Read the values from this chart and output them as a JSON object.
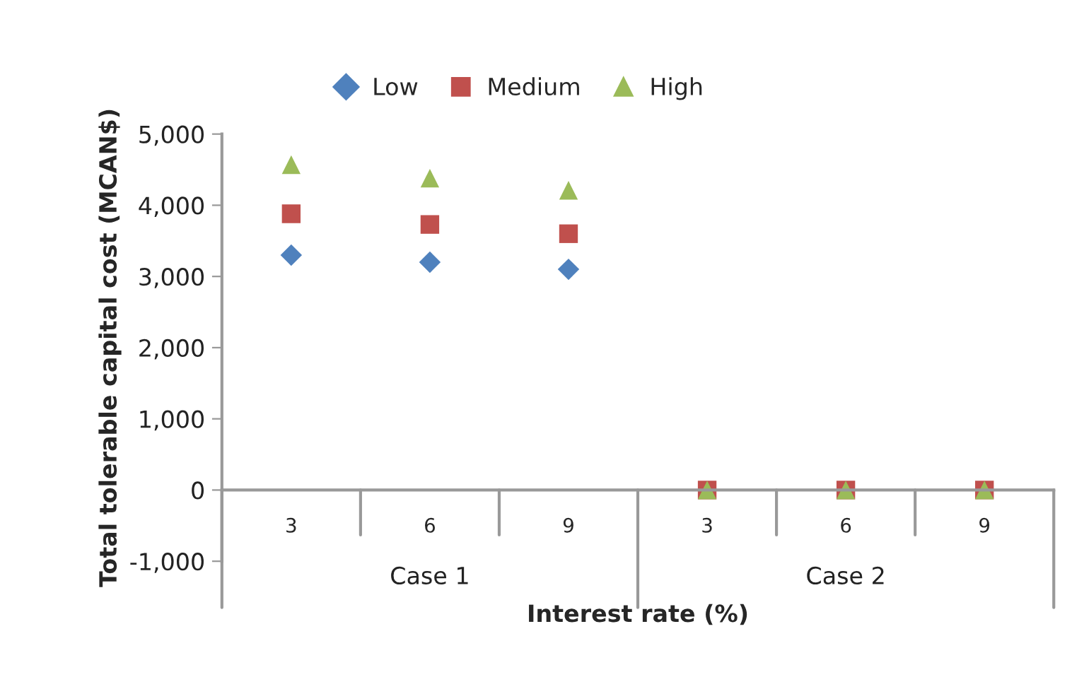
{
  "chart_data": {
    "type": "scatter",
    "xlabel": "Interest rate (%)",
    "ylabel": "Total tolerable capital cost (MCAN$)",
    "categories": [
      "3",
      "6",
      "9",
      "3",
      "6",
      "9"
    ],
    "series": [
      {
        "name": "Low",
        "color": "#4f81bd",
        "marker": "diamond",
        "values": [
          3300,
          3200,
          3100,
          null,
          null,
          null
        ]
      },
      {
        "name": "Medium",
        "color": "#c0504d",
        "marker": "square",
        "values": [
          3880,
          3730,
          3600,
          0,
          0,
          0
        ]
      },
      {
        "name": "High",
        "color": "#9bbb59",
        "marker": "triangle",
        "values": [
          4570,
          4380,
          4210,
          0,
          0,
          0
        ]
      }
    ],
    "annotations": [
      "Case 1",
      "Case 2"
    ],
    "ylim": [
      -1000,
      5000
    ],
    "yticks": [
      {
        "value": -1000,
        "label": "-1,000"
      },
      0,
      {
        "value": 1000,
        "label": "1,000"
      },
      {
        "value": 2000,
        "label": "2,000"
      },
      {
        "value": 3000,
        "label": "3,000"
      },
      {
        "value": 4000,
        "label": "4,000"
      },
      {
        "value": 5000,
        "label": "5,000"
      }
    ],
    "grid": false,
    "legend": "top"
  }
}
